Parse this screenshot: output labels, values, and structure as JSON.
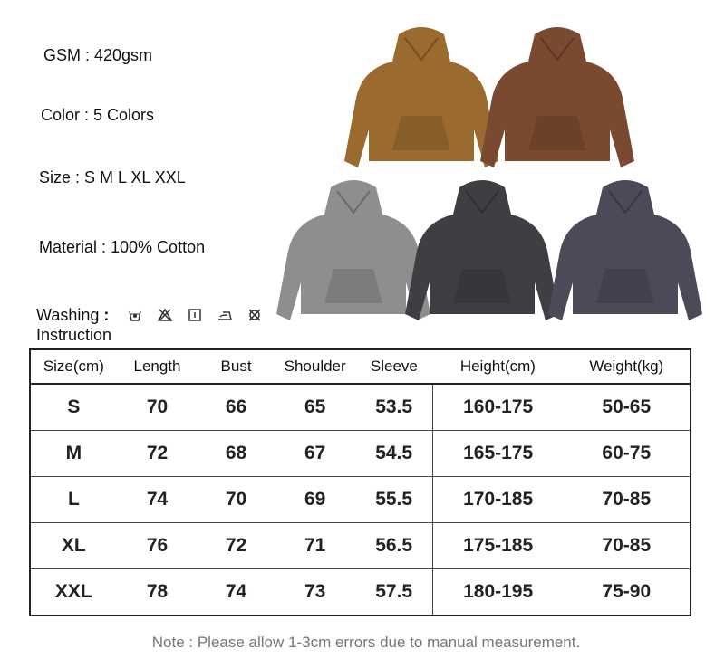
{
  "specs": {
    "gsm": "GSM : 420gsm",
    "color": "Color : 5 Colors",
    "size": "Size : S M L XL XXL",
    "material": "Material : 100% Cotton",
    "washing_label": "Washing",
    "washing_colon": ":",
    "instruction_label": "Instruction",
    "washing_icons": [
      "hand-wash-icon",
      "do-not-bleach-icon",
      "tumble-dry-icon",
      "iron-icon",
      "do-not-dry-clean-icon"
    ]
  },
  "hoodies": [
    {
      "name": "camel",
      "color": "#9a6a2f"
    },
    {
      "name": "brown",
      "color": "#7a4a30"
    },
    {
      "name": "light-grey",
      "color": "#8e8e8e"
    },
    {
      "name": "charcoal",
      "color": "#3e3f42"
    },
    {
      "name": "slate",
      "color": "#4a4a58"
    }
  ],
  "table": {
    "headers": [
      "Size(cm)",
      "Length",
      "Bust",
      "Shoulder",
      "Sleeve",
      "Height(cm)",
      "Weight(kg)"
    ],
    "rows": [
      [
        "S",
        "70",
        "66",
        "65",
        "53.5",
        "160-175",
        "50-65"
      ],
      [
        "M",
        "72",
        "68",
        "67",
        "54.5",
        "165-175",
        "60-75"
      ],
      [
        "L",
        "74",
        "70",
        "69",
        "55.5",
        "170-185",
        "70-85"
      ],
      [
        "XL",
        "76",
        "72",
        "71",
        "56.5",
        "175-185",
        "70-85"
      ],
      [
        "XXL",
        "78",
        "74",
        "73",
        "57.5",
        "180-195",
        "75-90"
      ]
    ]
  },
  "note": "Note : Please allow 1-3cm errors due to manual measurement."
}
